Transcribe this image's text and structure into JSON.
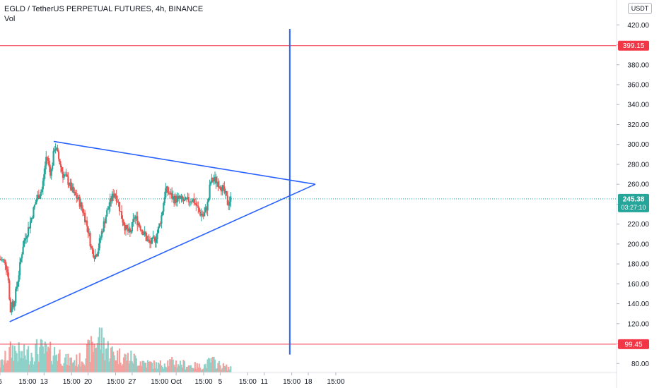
{
  "header": {
    "symbol_title": "EGLD / TetherUS PERPETUAL FUTURES, 4h, BINANCE",
    "volume_label": "Vol",
    "currency": "USDT"
  },
  "colors": {
    "up": "#26a69a",
    "down": "#ef5350",
    "vol_up": "#8ed1c8",
    "vol_down": "#f4a09d",
    "trendline": "#2962ff",
    "hline": "#f23645",
    "price_line": "#26a69a",
    "axis_text": "#131722"
  },
  "chart_data": {
    "type": "candlestick",
    "title": "EGLD / TetherUS PERPETUAL FUTURES, 4h, BINANCE",
    "y_axis": {
      "position": "right",
      "ticks": [
        80,
        100,
        120,
        140,
        160,
        180,
        200,
        220,
        240,
        260,
        280,
        300,
        320,
        340,
        360,
        380,
        400,
        420
      ],
      "tick_labels": [
        "80.00",
        "100.00",
        "120.00",
        "140.00",
        "160.00",
        "180.00",
        "200.00",
        "220.00",
        "240.00",
        "260.00",
        "280.00",
        "300.00",
        "320.00",
        "340.00",
        "360.00",
        "380.00",
        "400.00",
        "420.00"
      ],
      "ylim": [
        71,
        445
      ]
    },
    "x_axis": {
      "unit": "day",
      "xlim": [
        6,
        20
      ],
      "ticks": [
        {
          "x": 6.0,
          "label": "6"
        },
        {
          "x": 6.625,
          "label": "15:00"
        },
        {
          "x": 7.0,
          "label": "13"
        },
        {
          "x": 7.625,
          "label": "15:00"
        },
        {
          "x": 8.0,
          "label": "20"
        },
        {
          "x": 8.625,
          "label": "15:00"
        },
        {
          "x": 9.0,
          "label": "27"
        },
        {
          "x": 9.625,
          "label": "15:00"
        },
        {
          "x": 10.0,
          "label": "Oct"
        },
        {
          "x": 10.625,
          "label": "15:00"
        },
        {
          "x": 11.0,
          "label": "5"
        },
        {
          "x": 11.625,
          "label": "15:00"
        },
        {
          "x": 12.0,
          "label": "11"
        },
        {
          "x": 12.625,
          "label": "15:00"
        },
        {
          "x": 13.0,
          "label": "18"
        },
        {
          "x": 13.625,
          "label": "15:00"
        }
      ]
    },
    "price_anchors": [
      [
        6.0,
        185
      ],
      [
        6.15,
        182
      ],
      [
        6.22,
        165
      ],
      [
        6.25,
        130
      ],
      [
        6.3,
        142
      ],
      [
        6.34,
        140
      ],
      [
        6.45,
        170
      ],
      [
        6.55,
        200
      ],
      [
        6.7,
        220
      ],
      [
        6.85,
        245
      ],
      [
        6.98,
        255
      ],
      [
        7.08,
        290
      ],
      [
        7.18,
        270
      ],
      [
        7.27,
        300
      ],
      [
        7.36,
        285
      ],
      [
        7.45,
        270
      ],
      [
        7.55,
        265
      ],
      [
        7.7,
        250
      ],
      [
        7.8,
        245
      ],
      [
        7.92,
        232
      ],
      [
        8.02,
        215
      ],
      [
        8.1,
        195
      ],
      [
        8.18,
        188
      ],
      [
        8.25,
        195
      ],
      [
        8.35,
        215
      ],
      [
        8.45,
        232
      ],
      [
        8.55,
        245
      ],
      [
        8.62,
        252
      ],
      [
        8.7,
        244
      ],
      [
        8.78,
        228
      ],
      [
        8.88,
        215
      ],
      [
        8.98,
        210
      ],
      [
        9.08,
        228
      ],
      [
        9.18,
        220
      ],
      [
        9.3,
        210
      ],
      [
        9.42,
        200
      ],
      [
        9.55,
        205
      ],
      [
        9.62,
        215
      ],
      [
        9.7,
        230
      ],
      [
        9.78,
        255
      ],
      [
        9.88,
        250
      ],
      [
        9.98,
        245
      ],
      [
        10.1,
        245
      ],
      [
        10.25,
        242
      ],
      [
        10.35,
        245
      ],
      [
        10.42,
        244
      ],
      [
        10.55,
        232
      ],
      [
        10.65,
        228
      ],
      [
        10.75,
        242
      ],
      [
        10.8,
        262
      ],
      [
        10.88,
        265
      ],
      [
        10.98,
        262
      ],
      [
        11.08,
        255
      ],
      [
        11.15,
        248
      ],
      [
        11.2,
        240
      ],
      [
        11.25,
        245
      ]
    ],
    "volume_profile": [
      [
        6.0,
        15
      ],
      [
        6.3,
        50
      ],
      [
        6.5,
        35
      ],
      [
        6.9,
        48
      ],
      [
        7.1,
        40
      ],
      [
        7.3,
        42
      ],
      [
        7.5,
        25
      ],
      [
        7.8,
        25
      ],
      [
        8.1,
        52
      ],
      [
        8.25,
        75
      ],
      [
        8.35,
        58
      ],
      [
        8.55,
        40
      ],
      [
        8.8,
        32
      ],
      [
        9.0,
        30
      ],
      [
        9.3,
        20
      ],
      [
        9.6,
        15
      ],
      [
        9.75,
        22
      ],
      [
        10.0,
        20
      ],
      [
        10.3,
        15
      ],
      [
        10.6,
        12
      ],
      [
        10.8,
        24
      ],
      [
        11.0,
        15
      ],
      [
        11.25,
        8
      ]
    ],
    "volume_ylim_max": 100,
    "trendlines": [
      {
        "from": [
          6.22,
          122
        ],
        "to": [
          13.16,
          260
        ]
      },
      {
        "from": [
          7.22,
          303
        ],
        "to": [
          13.16,
          260
        ]
      }
    ],
    "vertical_line": {
      "x": 12.58,
      "from": 416,
      "to": 89
    },
    "horizontal_lines": [
      {
        "price": 399.15,
        "label": "399.15"
      },
      {
        "price": 99.45,
        "label": "99.45"
      }
    ],
    "last_price": {
      "price": 245.38,
      "label": "245.38",
      "countdown": "03:27:10"
    }
  }
}
